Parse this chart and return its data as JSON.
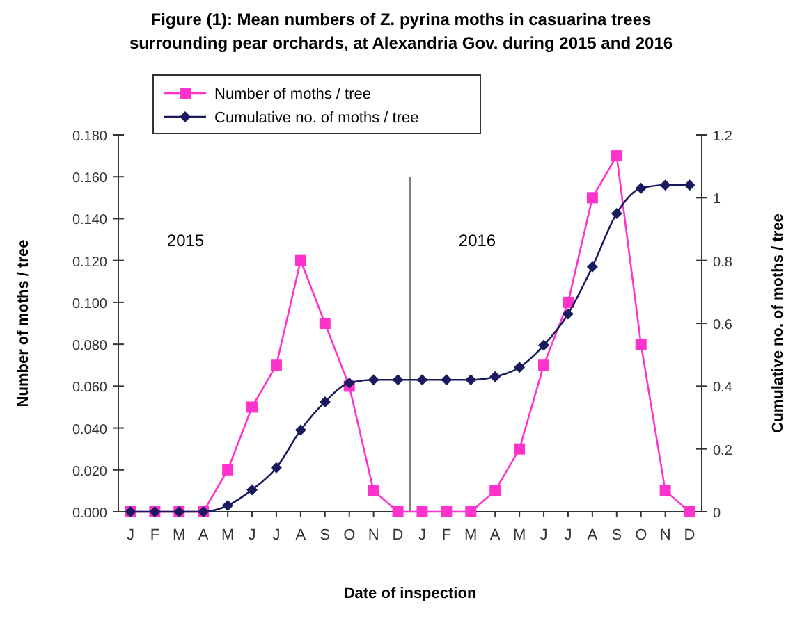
{
  "chart_data": {
    "type": "line",
    "title": "Figure (1): Mean numbers of Z. pyrina moths in casuarina trees\nsurrounding pear orchards, at Alexandria Gov. during 2015 and 2016",
    "xlabel": "Date of inspection",
    "ylabel": "Number of moths / tree",
    "y2label": "Cumulative no. of moths / tree",
    "categories": [
      "J",
      "F",
      "M",
      "A",
      "M",
      "J",
      "J",
      "A",
      "S",
      "O",
      "N",
      "D",
      "J",
      "F",
      "M",
      "A",
      "M",
      "J",
      "J",
      "A",
      "S",
      "O",
      "N",
      "D"
    ],
    "ylim": [
      0,
      0.18
    ],
    "yticks": [
      {
        "value": 0,
        "label": "0.000"
      },
      {
        "value": 0.02,
        "label": "0.020"
      },
      {
        "value": 0.04,
        "label": "0.040"
      },
      {
        "value": 0.06,
        "label": "0.060"
      },
      {
        "value": 0.08,
        "label": "0.080"
      },
      {
        "value": 0.1,
        "label": "0.100"
      },
      {
        "value": 0.12,
        "label": "0.120"
      },
      {
        "value": 0.14,
        "label": "0.140"
      },
      {
        "value": 0.16,
        "label": "0.160"
      },
      {
        "value": 0.18,
        "label": "0.180"
      }
    ],
    "y2lim": [
      0,
      1.2
    ],
    "y2ticks": [
      0,
      0.2,
      0.4,
      0.6,
      0.8,
      1,
      1.2
    ],
    "series": [
      {
        "name": "Number of moths / tree",
        "color": "#ff33cc",
        "marker": "square",
        "values": [
          0,
          0,
          0,
          0,
          0.02,
          0.05,
          0.07,
          0.12,
          0.09,
          0.06,
          0.01,
          0,
          0,
          0,
          0,
          0.01,
          0.03,
          0.07,
          0.1,
          0.15,
          0.17,
          0.08,
          0.01,
          0
        ]
      },
      {
        "name": "Cumulative no. of moths / tree",
        "color": "#1a1a5e",
        "marker": "diamond",
        "axis": "y2",
        "values": [
          0,
          0,
          0,
          0,
          0.02,
          0.07,
          0.14,
          0.26,
          0.35,
          0.41,
          0.42,
          0.42,
          0.42,
          0.42,
          0.42,
          0.43,
          0.46,
          0.53,
          0.63,
          0.78,
          0.95,
          1.03,
          1.04,
          1.04
        ]
      }
    ],
    "annotations": [
      "2015",
      "2016"
    ],
    "legend": "top left",
    "grid": false
  }
}
